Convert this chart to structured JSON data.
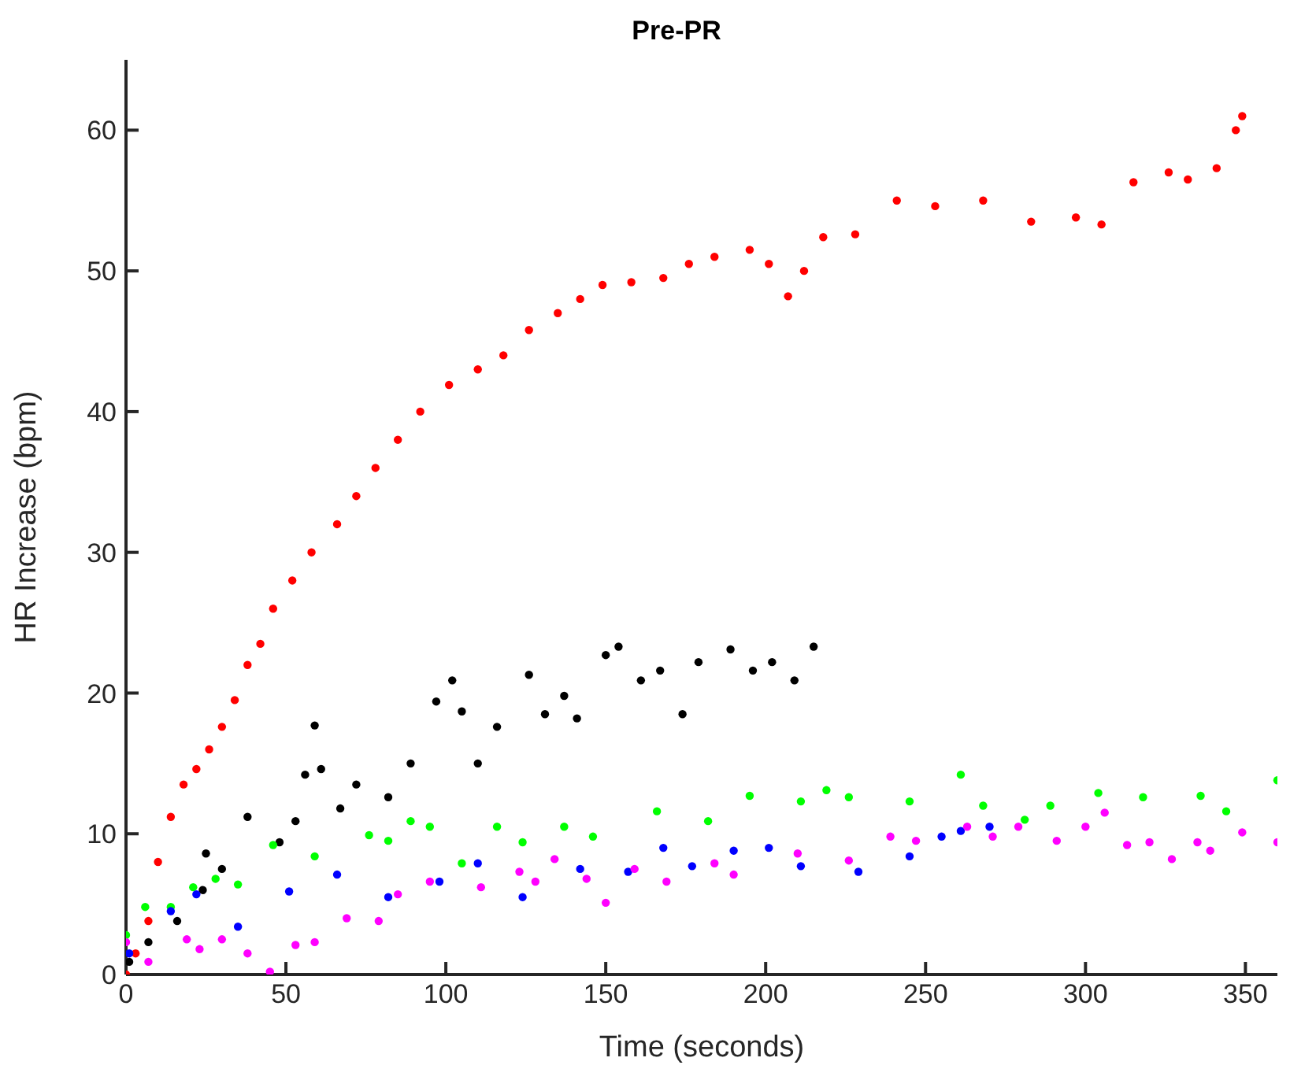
{
  "chart_data": {
    "type": "scatter",
    "title": "Pre-PR",
    "xlabel": "Time (seconds)",
    "ylabel": "HR Increase (bpm)",
    "xlim": [
      0,
      360
    ],
    "ylim": [
      0,
      65
    ],
    "xticks": [
      0,
      50,
      100,
      150,
      200,
      250,
      300,
      350
    ],
    "yticks": [
      0,
      10,
      20,
      30,
      40,
      50,
      60
    ],
    "marker": "circle",
    "series": [
      {
        "color": "#ff0000",
        "x": [
          0,
          3,
          7,
          10,
          14,
          18,
          22,
          26,
          30,
          34,
          38,
          42,
          46,
          52,
          58,
          66,
          72,
          78,
          85,
          92,
          101,
          110,
          118,
          126,
          135,
          142,
          149,
          158,
          168,
          176,
          184,
          195,
          201,
          207,
          212,
          218,
          228,
          241,
          253,
          268,
          283,
          297,
          305,
          315,
          326,
          332,
          341,
          347,
          349
        ],
        "values": [
          0,
          1.5,
          3.8,
          8,
          11.2,
          13.5,
          14.6,
          16,
          17.6,
          19.5,
          22,
          23.5,
          26,
          28,
          30,
          32,
          34,
          36,
          38,
          40,
          41.9,
          43,
          44,
          45.8,
          47,
          48,
          49,
          49.2,
          49.5,
          50.5,
          51,
          51.5,
          50.5,
          48.2,
          50,
          52.4,
          52.6,
          55,
          54.6,
          55,
          53.5,
          53.8,
          53.3,
          56.3,
          57,
          56.5,
          57.3,
          60,
          61
        ]
      },
      {
        "color": "#000000",
        "x": [
          1,
          7,
          16,
          24,
          25,
          30,
          38,
          48,
          53,
          56,
          59,
          61,
          67,
          72,
          82,
          89,
          97,
          102,
          105,
          110,
          116,
          126,
          131,
          137,
          141,
          150,
          154,
          161,
          167,
          174,
          179,
          189,
          196,
          202,
          209,
          215
        ],
        "values": [
          0.9,
          2.3,
          3.8,
          6,
          8.6,
          7.5,
          11.2,
          9.4,
          10.9,
          14.2,
          17.7,
          14.6,
          11.8,
          13.5,
          12.6,
          15,
          19.4,
          20.9,
          18.7,
          15,
          17.6,
          21.3,
          18.5,
          19.8,
          18.2,
          22.7,
          23.3,
          20.9,
          21.6,
          18.5,
          22.2,
          23.1,
          21.6,
          22.2,
          20.9,
          23.3
        ]
      },
      {
        "color": "#00ff00",
        "x": [
          0,
          6,
          14,
          21,
          28,
          35,
          46,
          59,
          76,
          82,
          89,
          95,
          105,
          116,
          124,
          137,
          146,
          166,
          182,
          195,
          211,
          219,
          226,
          245,
          261,
          268,
          281,
          289,
          304,
          318,
          336,
          344,
          360
        ],
        "values": [
          2.8,
          4.8,
          4.8,
          6.2,
          6.8,
          6.4,
          9.2,
          8.4,
          9.9,
          9.5,
          10.9,
          10.5,
          7.9,
          10.5,
          9.4,
          10.5,
          9.8,
          11.6,
          10.9,
          12.7,
          12.3,
          13.1,
          12.6,
          12.3,
          14.2,
          12,
          11,
          12,
          12.9,
          12.6,
          12.7,
          11.6,
          13.8
        ]
      },
      {
        "color": "#0000ff",
        "x": [
          1,
          14,
          22,
          35,
          51,
          66,
          82,
          98,
          110,
          124,
          142,
          157,
          168,
          177,
          190,
          201,
          211,
          229,
          245,
          255,
          261,
          270
        ],
        "values": [
          1.5,
          4.5,
          5.7,
          3.4,
          5.9,
          7.1,
          5.5,
          6.6,
          7.9,
          5.5,
          7.5,
          7.3,
          9,
          7.7,
          8.8,
          9,
          7.7,
          7.3,
          8.4,
          9.8,
          10.2,
          10.5
        ]
      },
      {
        "color": "#ff00ff",
        "x": [
          0,
          7,
          19,
          23,
          30,
          38,
          45,
          53,
          59,
          69,
          79,
          85,
          95,
          111,
          123,
          128,
          134,
          144,
          150,
          159,
          169,
          184,
          190,
          210,
          226,
          239,
          247,
          263,
          271,
          279,
          291,
          300,
          306,
          313,
          320,
          327,
          335,
          339,
          349,
          360
        ],
        "values": [
          2.3,
          0.9,
          2.5,
          1.8,
          2.5,
          1.5,
          0.2,
          2.1,
          2.3,
          4,
          3.8,
          5.7,
          6.6,
          6.2,
          7.3,
          6.6,
          8.2,
          6.8,
          5.1,
          7.5,
          6.6,
          7.9,
          7.1,
          8.6,
          8.1,
          9.8,
          9.5,
          10.5,
          9.8,
          10.5,
          9.5,
          10.5,
          11.5,
          9.2,
          9.4,
          8.2,
          9.4,
          8.8,
          10.1,
          9.4
        ]
      }
    ]
  }
}
